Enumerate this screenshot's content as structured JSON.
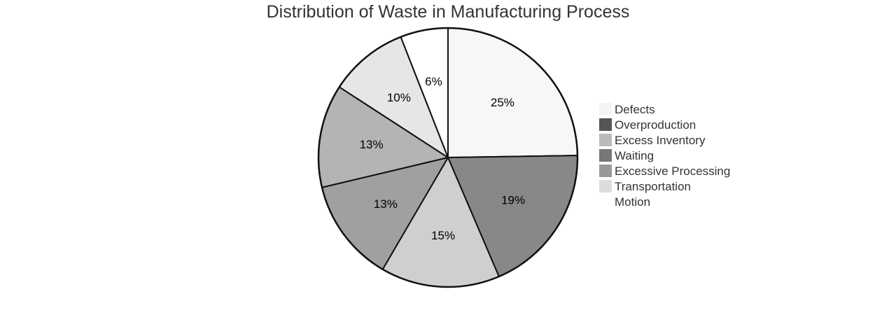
{
  "chart_data": {
    "type": "pie",
    "title": "Distribution of Waste in Manufacturing Process",
    "legend_position": "right",
    "slices": [
      {
        "label": "Defects",
        "value": 25,
        "display": "25%",
        "color": "#f7f7f7"
      },
      {
        "label": "Overproduction",
        "value": 19,
        "display": "19%",
        "color": "#888888"
      },
      {
        "label": "Excess Inventory",
        "value": 15,
        "display": "15%",
        "color": "#cfcfcf"
      },
      {
        "label": "Waiting",
        "value": 13,
        "display": "13%",
        "color": "#a0a0a0"
      },
      {
        "label": "Excessive Processing",
        "value": 13,
        "display": "13%",
        "color": "#b4b4b4"
      },
      {
        "label": "Transportation",
        "value": 10,
        "display": "10%",
        "color": "#e6e6e6"
      },
      {
        "label": "Motion",
        "value": 6,
        "display": "6%",
        "color": "#ffffff"
      }
    ],
    "legend": [
      {
        "label": "Defects",
        "color": "#f4f4f4"
      },
      {
        "label": "Overproduction",
        "color": "#555555"
      },
      {
        "label": "Excess Inventory",
        "color": "#bbbbbb"
      },
      {
        "label": "Waiting",
        "color": "#777777"
      },
      {
        "label": "Excessive Processing",
        "color": "#999999"
      },
      {
        "label": "Transportation",
        "color": "#dddddd"
      },
      {
        "label": "Motion",
        "color": "#ffffff"
      }
    ],
    "outline_color": "#111111"
  }
}
